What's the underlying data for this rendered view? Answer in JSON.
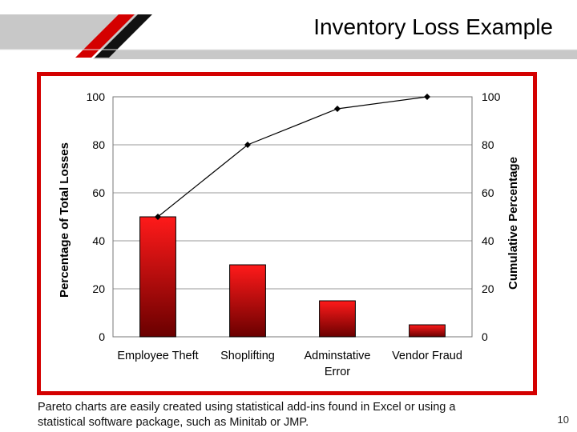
{
  "slide": {
    "title": "Inventory Loss Example",
    "caption_line1": "Pareto charts are easily created using statistical add-ins found in Excel or using a",
    "caption_line2": "statistical software package, such as Minitab or JMP.",
    "page_number": "10"
  },
  "colors": {
    "accent_red": "#d40000",
    "band_gray": "#c8c8c8",
    "bar_top": "#ff1a1a",
    "bar_bottom": "#6a0000"
  },
  "chart_data": {
    "type": "bar",
    "categories": [
      [
        "Employee Theft"
      ],
      [
        "Shoplifting"
      ],
      [
        "Adminstative",
        "Error"
      ],
      [
        "Vendor Fraud"
      ]
    ],
    "series": [
      {
        "values": [
          50,
          30,
          15,
          5
        ]
      },
      {
        "type": "line",
        "axis": "right",
        "values": [
          50,
          80,
          95,
          100
        ]
      }
    ],
    "ylabel": "Percentage of Total Losses",
    "y2label": "Cumulative Percentage",
    "ylim": [
      0,
      100
    ],
    "y2lim": [
      0,
      100
    ],
    "yticks": [
      0,
      20,
      40,
      60,
      80,
      100
    ],
    "y2ticks": [
      0,
      20,
      40,
      60,
      80,
      100
    ],
    "grid": true,
    "legend": "none"
  }
}
